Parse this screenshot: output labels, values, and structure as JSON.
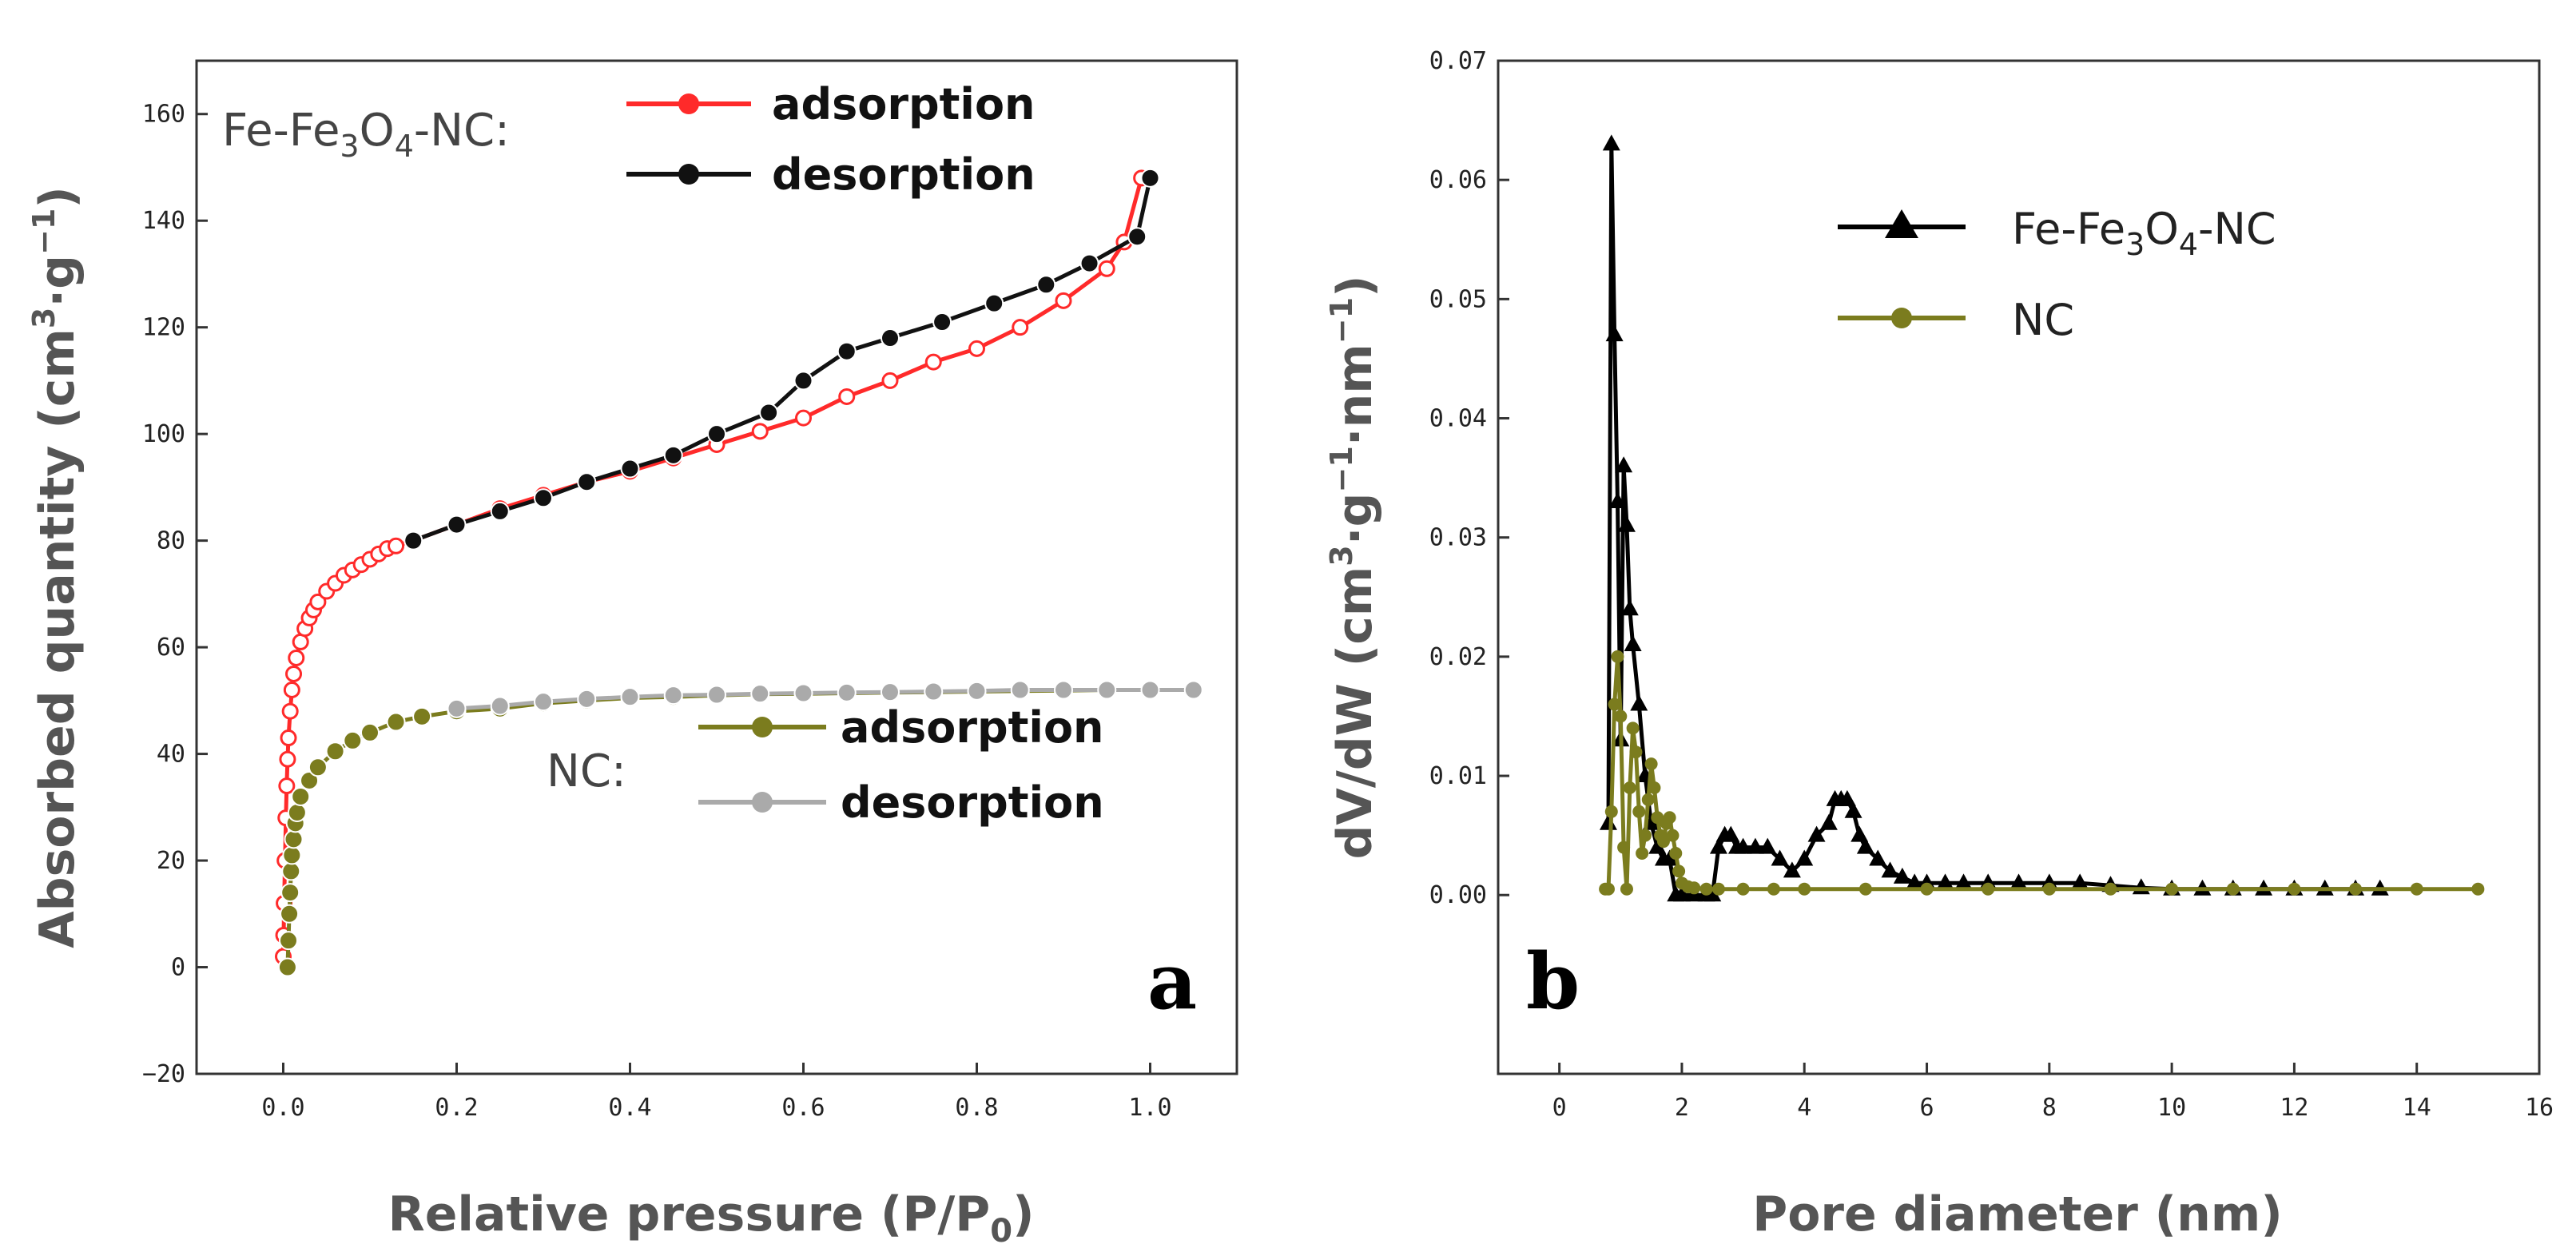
{
  "chart_data": [
    {
      "type": "line",
      "panel_label": "a",
      "xlabel": "Relative pressure (P/P",
      "xlabel_sub": "0",
      "xlabel_end": ")",
      "ylabel": "Absorbed quantity (cm",
      "ylabel_sup1": "3",
      "ylabel_mid": "·g",
      "ylabel_sup2": "−1",
      "ylabel_end": ")",
      "xlim": [
        -0.1,
        1.1
      ],
      "ylim": [
        -20,
        170
      ],
      "xticks": [
        "0.0",
        "0.2",
        "0.4",
        "0.6",
        "0.8",
        "1.0"
      ],
      "yticks": [
        "−20",
        "0",
        "20",
        "40",
        "60",
        "80",
        "100",
        "120",
        "140",
        "160"
      ],
      "xtick_values": [
        0.0,
        0.2,
        0.4,
        0.6,
        0.8,
        1.0
      ],
      "ytick_values": [
        -20,
        0,
        20,
        40,
        60,
        80,
        100,
        120,
        140,
        160
      ],
      "legend_groups": [
        {
          "head_a": "Fe-Fe",
          "head_sub1": "3",
          "head_b": "O",
          "head_sub2": "4",
          "head_c": "-NC:",
          "items": [
            "adsorption",
            "desorption"
          ]
        },
        {
          "head_a": "NC:",
          "items": [
            "adsorption",
            "desorption"
          ]
        }
      ],
      "series": [
        {
          "name": "Fe-Fe3O4-NC adsorption",
          "color": "#ff2a2a",
          "open": true,
          "x": [
            0.0,
            0.0005,
            0.001,
            0.002,
            0.003,
            0.004,
            0.005,
            0.006,
            0.008,
            0.01,
            0.012,
            0.015,
            0.02,
            0.025,
            0.03,
            0.035,
            0.04,
            0.05,
            0.06,
            0.07,
            0.08,
            0.09,
            0.1,
            0.11,
            0.12,
            0.13,
            0.15,
            0.2,
            0.25,
            0.3,
            0.35,
            0.4,
            0.45,
            0.5,
            0.55,
            0.6,
            0.65,
            0.7,
            0.75,
            0.8,
            0.85,
            0.9,
            0.95,
            0.97,
            0.99
          ],
          "y": [
            2,
            6,
            12,
            20,
            28,
            34,
            39,
            43,
            48,
            52,
            55,
            58,
            61,
            63.5,
            65.5,
            67,
            68.5,
            70.5,
            72,
            73.5,
            74.5,
            75.5,
            76.5,
            77.5,
            78.5,
            79,
            80,
            83,
            86,
            88.5,
            91,
            93,
            95.5,
            98,
            100.5,
            103,
            107,
            110,
            113.5,
            116,
            120,
            125,
            131,
            136,
            148
          ]
        },
        {
          "name": "Fe-Fe3O4-NC desorption",
          "color": "#111111",
          "open": false,
          "x": [
            1.0,
            0.985,
            0.93,
            0.88,
            0.82,
            0.76,
            0.7,
            0.65,
            0.6,
            0.56,
            0.5,
            0.45,
            0.4,
            0.35,
            0.3,
            0.25,
            0.2,
            0.15
          ],
          "y": [
            148,
            137,
            132,
            128,
            124.5,
            121,
            118,
            115.5,
            110,
            104,
            100,
            96,
            93.5,
            91,
            88,
            85.5,
            83,
            80
          ]
        },
        {
          "name": "NC adsorption",
          "color": "#7b7c1e",
          "open": false,
          "x": [
            0.005,
            0.006,
            0.007,
            0.008,
            0.009,
            0.01,
            0.012,
            0.014,
            0.016,
            0.02,
            0.03,
            0.04,
            0.06,
            0.08,
            0.1,
            0.13,
            0.16,
            0.2,
            0.25,
            0.3,
            0.35,
            0.4,
            0.45,
            0.5,
            0.55,
            0.6,
            0.65,
            0.7,
            0.75,
            0.8,
            0.85,
            0.9,
            0.95,
            1.0,
            1.05
          ],
          "y": [
            0,
            5,
            10,
            14,
            18,
            21,
            24,
            27,
            29,
            32,
            35,
            37.5,
            40.5,
            42.5,
            44,
            46,
            47,
            48,
            48.5,
            49.5,
            50,
            50.5,
            50.7,
            51,
            51.2,
            51.3,
            51.4,
            51.5,
            51.6,
            51.7,
            51.8,
            51.9,
            52,
            52,
            52
          ]
        },
        {
          "name": "NC desorption",
          "color": "#aaaaaa",
          "open": false,
          "x": [
            1.05,
            1.0,
            0.95,
            0.9,
            0.85,
            0.8,
            0.75,
            0.7,
            0.65,
            0.6,
            0.55,
            0.5,
            0.45,
            0.4,
            0.35,
            0.3,
            0.25,
            0.2
          ],
          "y": [
            52,
            52,
            52,
            52,
            52,
            51.8,
            51.7,
            51.6,
            51.5,
            51.4,
            51.3,
            51.1,
            51,
            50.7,
            50.3,
            49.8,
            49,
            48.5
          ]
        }
      ]
    },
    {
      "type": "line",
      "panel_label": "b",
      "xlabel": "Pore diameter (nm)",
      "ylabel": "dV/dW (cm",
      "ylabel_sup1": "3",
      "ylabel_mid": "·g",
      "ylabel_sup2": "−1",
      "ylabel_mid2": "·nm",
      "ylabel_sup3": "−1",
      "ylabel_end": ")",
      "xlim": [
        -1,
        16
      ],
      "ylim": [
        -0.015,
        0.07
      ],
      "xticks": [
        "0",
        "2",
        "4",
        "6",
        "8",
        "10",
        "12",
        "14",
        "16"
      ],
      "yticks": [
        "0.00",
        "0.01",
        "0.02",
        "0.03",
        "0.04",
        "0.05",
        "0.06",
        "0.07"
      ],
      "xtick_values": [
        0,
        2,
        4,
        6,
        8,
        10,
        12,
        14,
        16
      ],
      "ytick_values": [
        0,
        0.01,
        0.02,
        0.03,
        0.04,
        0.05,
        0.06,
        0.07
      ],
      "legend": [
        {
          "label_a": "Fe-Fe",
          "label_sub1": "3",
          "label_b": "O",
          "label_sub2": "4",
          "label_c": "-NC",
          "marker": "triangle",
          "color": "#000000"
        },
        {
          "label_a": "NC",
          "marker": "circle",
          "color": "#7b7c1e"
        }
      ],
      "series": [
        {
          "name": "Fe-Fe3O4-NC",
          "color": "#000000",
          "marker": "triangle",
          "x": [
            0.8,
            0.85,
            0.9,
            0.95,
            1.0,
            1.05,
            1.1,
            1.15,
            1.2,
            1.3,
            1.4,
            1.5,
            1.6,
            1.7,
            1.8,
            1.9,
            2.0,
            2.2,
            2.4,
            2.5,
            2.6,
            2.7,
            2.8,
            2.9,
            3.0,
            3.2,
            3.4,
            3.6,
            3.8,
            4.0,
            4.2,
            4.4,
            4.5,
            4.6,
            4.7,
            4.8,
            4.9,
            5.0,
            5.2,
            5.4,
            5.6,
            5.8,
            6.0,
            6.3,
            6.6,
            7.0,
            7.5,
            8.0,
            8.5,
            9.0,
            9.5,
            10.0,
            10.5,
            11.0,
            11.5,
            12.0,
            12.5,
            13.0,
            13.4
          ],
          "y": [
            0.006,
            0.063,
            0.047,
            0.033,
            0.013,
            0.036,
            0.031,
            0.024,
            0.021,
            0.016,
            0.01,
            0.006,
            0.004,
            0.003,
            0.003,
            0.0,
            0.0,
            0.0,
            0.0,
            0.0,
            0.004,
            0.005,
            0.005,
            0.004,
            0.004,
            0.004,
            0.004,
            0.003,
            0.002,
            0.003,
            0.005,
            0.006,
            0.008,
            0.008,
            0.008,
            0.007,
            0.005,
            0.004,
            0.003,
            0.002,
            0.0015,
            0.001,
            0.001,
            0.001,
            0.001,
            0.001,
            0.001,
            0.001,
            0.001,
            0.0008,
            0.0006,
            0.0005,
            0.0005,
            0.0005,
            0.0005,
            0.0005,
            0.0005,
            0.0005,
            0.0005
          ]
        },
        {
          "name": "NC",
          "color": "#7b7c1e",
          "marker": "circle",
          "x": [
            0.75,
            0.8,
            0.85,
            0.9,
            0.95,
            1.0,
            1.05,
            1.1,
            1.15,
            1.2,
            1.25,
            1.3,
            1.35,
            1.4,
            1.45,
            1.5,
            1.55,
            1.6,
            1.65,
            1.7,
            1.75,
            1.8,
            1.85,
            1.9,
            1.95,
            2.0,
            2.1,
            2.2,
            2.4,
            2.6,
            3.0,
            3.5,
            4.0,
            5.0,
            6.0,
            7.0,
            8.0,
            9.0,
            10.0,
            11.0,
            12.0,
            13.0,
            14.0,
            15.0
          ],
          "y": [
            0.0005,
            0.0005,
            0.007,
            0.016,
            0.02,
            0.015,
            0.004,
            0.0005,
            0.009,
            0.014,
            0.012,
            0.007,
            0.0035,
            0.005,
            0.008,
            0.011,
            0.009,
            0.0065,
            0.005,
            0.0045,
            0.006,
            0.0065,
            0.005,
            0.0035,
            0.002,
            0.001,
            0.0007,
            0.0006,
            0.0005,
            0.0005,
            0.0005,
            0.0005,
            0.0005,
            0.0005,
            0.0005,
            0.0005,
            0.0005,
            0.0005,
            0.0005,
            0.0005,
            0.0005,
            0.0005,
            0.0005,
            0.0005
          ]
        }
      ]
    }
  ]
}
